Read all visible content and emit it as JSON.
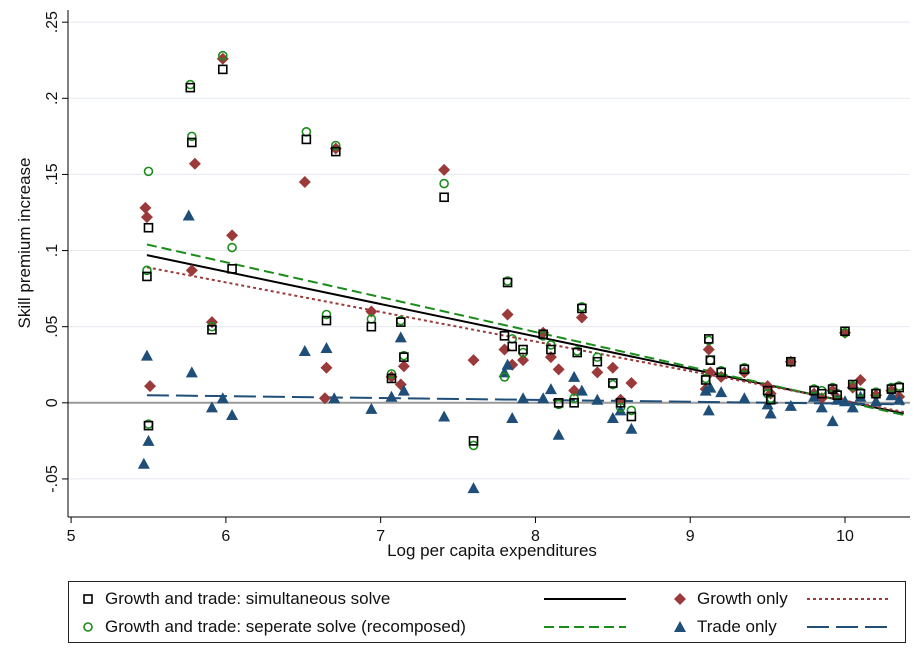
{
  "chart_data": {
    "type": "scatter",
    "xlabel": "Log per capita expenditures",
    "ylabel": "Skill premium increase",
    "xlim": [
      4.98,
      10.42
    ],
    "ylim": [
      -0.075,
      0.258
    ],
    "xticks": [
      5,
      6,
      7,
      8,
      9,
      10
    ],
    "xtick_labels": [
      "5",
      "6",
      "7",
      "8",
      "9",
      "10"
    ],
    "yticks": [
      -0.05,
      0,
      0.05,
      0.1,
      0.15,
      0.2,
      0.25
    ],
    "ytick_labels": [
      "-.05",
      "0",
      ".05",
      ".1",
      ".15",
      ".2",
      ".25"
    ],
    "grid": "horizontal",
    "legend_position": "bottom",
    "series": [
      {
        "name": "Growth and trade: simultaneous solve",
        "marker": "hollow-square",
        "color": "#000000",
        "points": [
          [
            5.49,
            0.083
          ],
          [
            5.5,
            0.115
          ],
          [
            5.5,
            -0.015
          ],
          [
            5.77,
            0.207
          ],
          [
            5.78,
            0.171
          ],
          [
            5.91,
            0.048
          ],
          [
            5.98,
            0.219
          ],
          [
            6.04,
            0.088
          ],
          [
            6.52,
            0.173
          ],
          [
            6.65,
            0.054
          ],
          [
            6.71,
            0.165
          ],
          [
            6.94,
            0.05
          ],
          [
            7.07,
            0.016
          ],
          [
            7.13,
            0.053
          ],
          [
            7.15,
            0.03
          ],
          [
            7.41,
            0.135
          ],
          [
            7.6,
            -0.025
          ],
          [
            7.8,
            0.044
          ],
          [
            7.82,
            0.079
          ],
          [
            7.85,
            0.037
          ],
          [
            7.92,
            0.035
          ],
          [
            8.05,
            0.045
          ],
          [
            8.1,
            0.035
          ],
          [
            8.15,
            0.0
          ],
          [
            8.25,
            0.0
          ],
          [
            8.27,
            0.033
          ],
          [
            8.3,
            0.062
          ],
          [
            8.4,
            0.027
          ],
          [
            8.5,
            0.013
          ],
          [
            8.55,
            0.0
          ],
          [
            8.62,
            -0.009
          ],
          [
            9.1,
            0.015
          ],
          [
            9.12,
            0.042
          ],
          [
            9.13,
            0.028
          ],
          [
            9.2,
            0.02
          ],
          [
            9.35,
            0.022
          ],
          [
            9.5,
            0.008
          ],
          [
            9.52,
            0.002
          ],
          [
            9.65,
            0.027
          ],
          [
            9.8,
            0.008
          ],
          [
            9.85,
            0.006
          ],
          [
            9.92,
            0.009
          ],
          [
            9.95,
            0.005
          ],
          [
            10.0,
            0.047
          ],
          [
            10.05,
            0.012
          ],
          [
            10.1,
            0.006
          ],
          [
            10.2,
            0.006
          ],
          [
            10.3,
            0.009
          ],
          [
            10.35,
            0.01
          ]
        ]
      },
      {
        "name": "Growth and trade: seperate solve (recomposed)",
        "marker": "hollow-circle",
        "color": "#1a8c1a",
        "points": [
          [
            5.49,
            0.087
          ],
          [
            5.5,
            0.152
          ],
          [
            5.5,
            -0.014
          ],
          [
            5.77,
            0.209
          ],
          [
            5.78,
            0.175
          ],
          [
            5.91,
            0.05
          ],
          [
            5.98,
            0.228
          ],
          [
            6.04,
            0.102
          ],
          [
            6.52,
            0.178
          ],
          [
            6.65,
            0.058
          ],
          [
            6.71,
            0.169
          ],
          [
            6.94,
            0.055
          ],
          [
            7.07,
            0.019
          ],
          [
            7.13,
            0.054
          ],
          [
            7.15,
            0.031
          ],
          [
            7.41,
            0.144
          ],
          [
            7.6,
            -0.028
          ],
          [
            7.8,
            0.017
          ],
          [
            7.82,
            0.08
          ],
          [
            7.85,
            0.042
          ],
          [
            7.92,
            0.033
          ],
          [
            8.05,
            0.044
          ],
          [
            8.1,
            0.038
          ],
          [
            8.15,
            -0.001
          ],
          [
            8.25,
            0.003
          ],
          [
            8.27,
            0.034
          ],
          [
            8.3,
            0.063
          ],
          [
            8.4,
            0.03
          ],
          [
            8.5,
            0.012
          ],
          [
            8.55,
            -0.003
          ],
          [
            8.62,
            -0.005
          ],
          [
            9.1,
            0.016
          ],
          [
            9.12,
            0.041
          ],
          [
            9.13,
            0.028
          ],
          [
            9.2,
            0.021
          ],
          [
            9.35,
            0.023
          ],
          [
            9.5,
            0.006
          ],
          [
            9.52,
            0.003
          ],
          [
            9.65,
            0.027
          ],
          [
            9.8,
            0.009
          ],
          [
            9.85,
            0.008
          ],
          [
            9.92,
            0.01
          ],
          [
            9.95,
            0.006
          ],
          [
            10.0,
            0.046
          ],
          [
            10.05,
            0.011
          ],
          [
            10.1,
            0.007
          ],
          [
            10.2,
            0.007
          ],
          [
            10.3,
            0.01
          ],
          [
            10.35,
            0.011
          ]
        ]
      },
      {
        "name": "Growth only",
        "marker": "filled-diamond",
        "color": "#9b3a3a",
        "points": [
          [
            5.48,
            0.128
          ],
          [
            5.49,
            0.122
          ],
          [
            5.51,
            0.011
          ],
          [
            5.78,
            0.087
          ],
          [
            5.8,
            0.157
          ],
          [
            5.91,
            0.053
          ],
          [
            5.98,
            0.226
          ],
          [
            6.04,
            0.11
          ],
          [
            6.51,
            0.145
          ],
          [
            6.65,
            0.023
          ],
          [
            6.64,
            0.003
          ],
          [
            6.71,
            0.167
          ],
          [
            6.94,
            0.06
          ],
          [
            7.07,
            0.017
          ],
          [
            7.13,
            0.012
          ],
          [
            7.15,
            0.024
          ],
          [
            7.41,
            0.153
          ],
          [
            7.6,
            0.028
          ],
          [
            7.8,
            0.035
          ],
          [
            7.82,
            0.058
          ],
          [
            7.85,
            0.025
          ],
          [
            7.92,
            0.028
          ],
          [
            8.05,
            0.046
          ],
          [
            8.1,
            0.03
          ],
          [
            8.15,
            0.022
          ],
          [
            8.25,
            0.008
          ],
          [
            8.3,
            0.056
          ],
          [
            8.4,
            0.02
          ],
          [
            8.5,
            0.023
          ],
          [
            8.55,
            0.002
          ],
          [
            8.62,
            0.013
          ],
          [
            9.1,
            0.009
          ],
          [
            9.12,
            0.035
          ],
          [
            9.13,
            0.02
          ],
          [
            9.2,
            0.017
          ],
          [
            9.35,
            0.02
          ],
          [
            9.5,
            0.011
          ],
          [
            9.52,
            0.006
          ],
          [
            9.65,
            0.027
          ],
          [
            9.8,
            0.006
          ],
          [
            9.85,
            0.003
          ],
          [
            9.92,
            0.008
          ],
          [
            9.95,
            0.003
          ],
          [
            10.0,
            0.046
          ],
          [
            10.05,
            0.01
          ],
          [
            10.1,
            0.015
          ],
          [
            10.2,
            0.005
          ],
          [
            10.3,
            0.008
          ],
          [
            10.35,
            0.004
          ]
        ]
      },
      {
        "name": "Trade only",
        "marker": "filled-triangle",
        "color": "#1f4e79",
        "points": [
          [
            5.47,
            -0.04
          ],
          [
            5.49,
            0.031
          ],
          [
            5.5,
            -0.025
          ],
          [
            5.76,
            0.123
          ],
          [
            5.78,
            0.02
          ],
          [
            5.91,
            -0.003
          ],
          [
            5.98,
            0.003
          ],
          [
            6.04,
            -0.008
          ],
          [
            6.51,
            0.034
          ],
          [
            6.65,
            0.036
          ],
          [
            6.7,
            0.003
          ],
          [
            6.94,
            -0.004
          ],
          [
            7.07,
            0.004
          ],
          [
            7.13,
            0.043
          ],
          [
            7.15,
            0.008
          ],
          [
            7.41,
            -0.009
          ],
          [
            7.6,
            -0.056
          ],
          [
            7.8,
            0.02
          ],
          [
            7.82,
            0.025
          ],
          [
            7.85,
            -0.01
          ],
          [
            7.92,
            0.003
          ],
          [
            8.05,
            0.003
          ],
          [
            8.1,
            0.009
          ],
          [
            8.15,
            -0.021
          ],
          [
            8.25,
            0.017
          ],
          [
            8.3,
            0.008
          ],
          [
            8.4,
            0.002
          ],
          [
            8.5,
            -0.01
          ],
          [
            8.55,
            -0.005
          ],
          [
            8.62,
            -0.017
          ],
          [
            9.1,
            0.008
          ],
          [
            9.12,
            -0.005
          ],
          [
            9.13,
            0.01
          ],
          [
            9.2,
            0.007
          ],
          [
            9.35,
            0.003
          ],
          [
            9.5,
            -0.001
          ],
          [
            9.52,
            -0.007
          ],
          [
            9.65,
            -0.002
          ],
          [
            9.8,
            0.004
          ],
          [
            9.85,
            -0.003
          ],
          [
            9.92,
            -0.012
          ],
          [
            9.95,
            0.002
          ],
          [
            10.0,
            0.001
          ],
          [
            10.05,
            -0.003
          ],
          [
            10.1,
            0.004
          ],
          [
            10.2,
            0.001
          ],
          [
            10.3,
            0.005
          ],
          [
            10.35,
            0.002
          ]
        ]
      }
    ],
    "fit_lines": [
      {
        "name": "Growth and trade: simultaneous solve",
        "style": "solid",
        "color": "#000000",
        "x": [
          5.49,
          10.38
        ],
        "y": [
          0.097,
          -0.007
        ]
      },
      {
        "name": "Growth and trade: seperate solve (recomposed)",
        "style": "dashed",
        "color": "#1a8c1a",
        "x": [
          5.49,
          10.38
        ],
        "y": [
          0.104,
          -0.008
        ]
      },
      {
        "name": "Growth only",
        "style": "dotted",
        "color": "#9b3a3a",
        "x": [
          5.49,
          10.38
        ],
        "y": [
          0.089,
          -0.006
        ]
      },
      {
        "name": "Trade only",
        "style": "longdash",
        "color": "#1f4e79",
        "x": [
          5.49,
          10.38
        ],
        "y": [
          0.005,
          -0.001
        ]
      }
    ],
    "legend": {
      "entries": [
        {
          "label": "Growth and trade: simultaneous solve",
          "marker": "hollow-square",
          "line": "solid",
          "color": "#000000",
          "line_color": "#000000"
        },
        {
          "label": "Growth only",
          "marker": "filled-diamond",
          "line": "dotted",
          "color": "#9b3a3a",
          "line_color": "#9b3a3a"
        },
        {
          "label": "Growth and trade: seperate solve (recomposed)",
          "marker": "hollow-circle",
          "line": "dashed",
          "color": "#1a8c1a",
          "line_color": "#1a8c1a"
        },
        {
          "label": "Trade only",
          "marker": "filled-triangle",
          "line": "longdash",
          "color": "#1f4e79",
          "line_color": "#1f4e79"
        }
      ]
    }
  }
}
